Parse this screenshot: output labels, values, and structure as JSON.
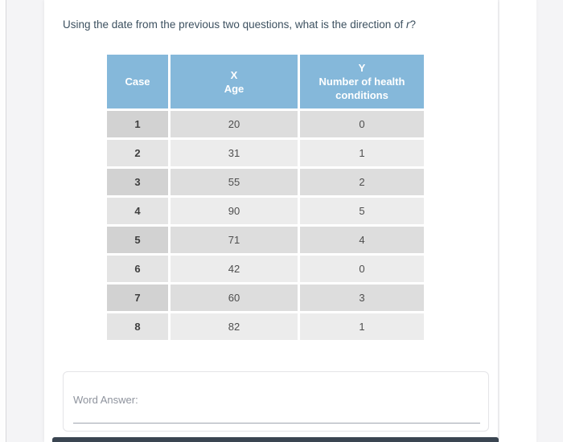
{
  "question": {
    "text": "Using the date from the previous two questions, what is the direction of ",
    "symbol": "r",
    "suffix": "?"
  },
  "table": {
    "columns": [
      {
        "line1": "Case",
        "line2": ""
      },
      {
        "line1": "X",
        "line2": "Age"
      },
      {
        "line1": "Y",
        "line2": "Number of health conditions"
      }
    ],
    "rows": [
      [
        "1",
        "20",
        "0"
      ],
      [
        "2",
        "31",
        "1"
      ],
      [
        "3",
        "55",
        "2"
      ],
      [
        "4",
        "90",
        "5"
      ],
      [
        "5",
        "71",
        "4"
      ],
      [
        "6",
        "42",
        "0"
      ],
      [
        "7",
        "60",
        "3"
      ],
      [
        "8",
        "82",
        "1"
      ]
    ]
  },
  "answer": {
    "label": "Word Answer:",
    "value": ""
  },
  "colors": {
    "header_blue": "#85b8da",
    "row_odd_case": "#d2d2d2",
    "row_odd_value": "#dddddd",
    "row_even_case": "#e4e4e4",
    "row_even_value": "#ececec",
    "question_text": "#3d5160",
    "answer_label": "#8e939d",
    "page_background": "#f4f4f6",
    "bottom_bar": "#3a4551"
  }
}
